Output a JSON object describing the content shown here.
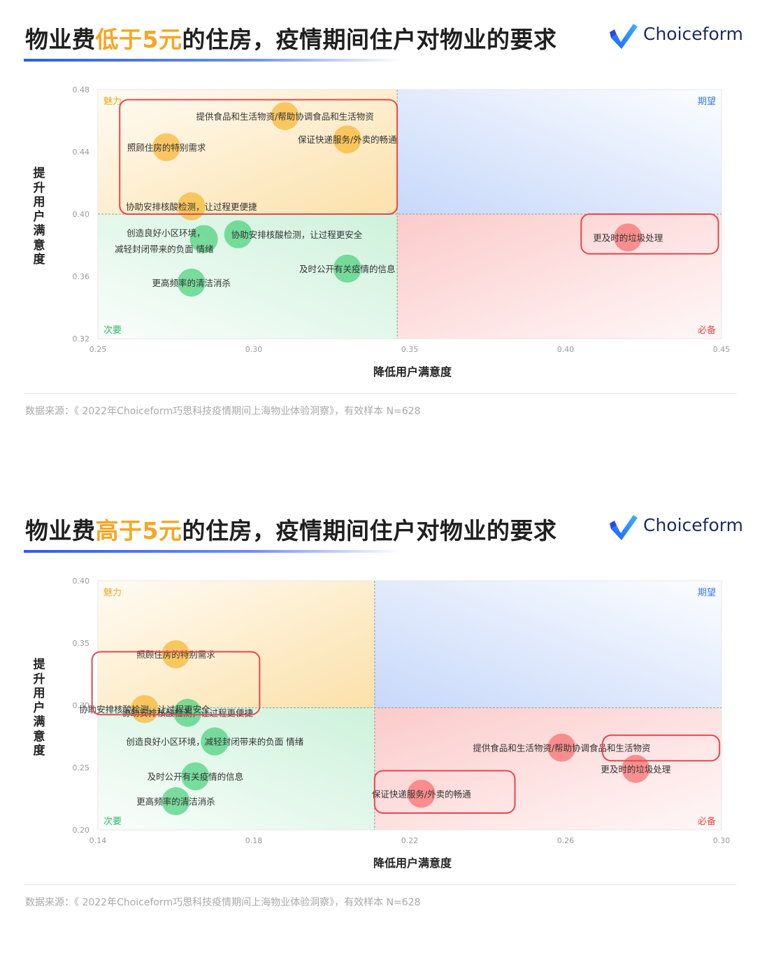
{
  "panels": [
    {
      "title_prefix": "物业费",
      "title_highlight": "低于5元",
      "title_suffix": "的住房，疫情期间住户对物业的要求",
      "logo_text": "Choiceform",
      "source": "数据来源：《 2022年Choiceform巧思科技疫情期间上海物业体验洞察》，有效样本 N=628",
      "chart_data": {
        "type": "scatter",
        "xlabel": "降低用户满意度",
        "ylabel": "提升用户满意度",
        "xlim": [
          0.25,
          0.45
        ],
        "ylim": [
          0.32,
          0.48
        ],
        "x_ticks": [
          "0.25",
          "0.30",
          "0.35",
          "0.40",
          "0.45"
        ],
        "y_ticks": [
          "0.32",
          "0.36",
          "0.40",
          "0.44",
          "0.48"
        ],
        "x_split": 0.346,
        "y_split": 0.4,
        "quadrants": {
          "top_left": "魅力",
          "top_right": "期望",
          "bottom_left": "次要",
          "bottom_right": "必备"
        },
        "points": [
          {
            "label": "提供食品和生活物资/帮助协调食品和生活物资",
            "x": 0.31,
            "y": 0.463,
            "cat": "orange",
            "anchor": "center"
          },
          {
            "label": "照顾住房的特别需求",
            "x": 0.272,
            "y": 0.443,
            "cat": "orange",
            "anchor": "center"
          },
          {
            "label": "保证快递服务/外卖的畅通",
            "x": 0.33,
            "y": 0.448,
            "cat": "orange",
            "anchor": "center"
          },
          {
            "label": "协助安排核酸检测，让过程更便捷",
            "x": 0.28,
            "y": 0.405,
            "cat": "orange",
            "anchor": "center"
          },
          {
            "label": "创造良好小区环境，",
            "x": 0.284,
            "y": 0.384,
            "cat": "green",
            "anchor": "left"
          },
          {
            "label": "减轻封闭带来的负面 情绪",
            "x": 0.284,
            "y": 0.384,
            "cat": "green",
            "anchor": "left2"
          },
          {
            "label": "协助安排核酸检测，让过程更安全",
            "x": 0.295,
            "y": 0.387,
            "cat": "green",
            "anchor": "right"
          },
          {
            "label": "及时公开有关疫情的信息",
            "x": 0.33,
            "y": 0.365,
            "cat": "green",
            "anchor": "center"
          },
          {
            "label": "更高频率的清洁消杀",
            "x": 0.28,
            "y": 0.356,
            "cat": "green",
            "anchor": "center"
          },
          {
            "label": "更及时的垃圾处理",
            "x": 0.42,
            "y": 0.385,
            "cat": "red",
            "anchor": "center"
          }
        ],
        "highlight_boxes": [
          {
            "x0": 0.257,
            "x1": 0.346,
            "y0": 0.4,
            "y1": 0.4735
          },
          {
            "x0": 0.405,
            "x1": 0.449,
            "y0": 0.3745,
            "y1": 0.4
          }
        ]
      }
    },
    {
      "title_prefix": "物业费",
      "title_highlight": "高于5元",
      "title_suffix": "的住房，疫情期间住户对物业的要求",
      "logo_text": "Choiceform",
      "source": "数据来源：《 2022年Choiceform巧思科技疫情期间上海物业体验洞察》，有效样本 N=628",
      "chart_data": {
        "type": "scatter",
        "xlabel": "降低用户满意度",
        "ylabel": "提升用户满意度",
        "xlim": [
          0.14,
          0.3
        ],
        "ylim": [
          0.2,
          0.4
        ],
        "x_ticks": [
          "0.14",
          "0.18",
          "0.22",
          "0.26",
          "0.30"
        ],
        "y_ticks": [
          "0.20",
          "0.25",
          "0.30",
          "0.35",
          "0.40"
        ],
        "x_split": 0.211,
        "y_split": 0.298,
        "quadrants": {
          "top_left": "魅力",
          "top_right": "期望",
          "bottom_left": "次要",
          "bottom_right": "必备"
        },
        "points": [
          {
            "label": "照顾住房的特别需求",
            "x": 0.16,
            "y": 0.341,
            "cat": "orange",
            "anchor": "center"
          },
          {
            "label": "协助安排核酸检测，让过程更安全",
            "x": 0.152,
            "y": 0.297,
            "cat": "orange",
            "anchor": "center"
          },
          {
            "label": "协助安排核酸检测，让过程更便捷",
            "x": 0.163,
            "y": 0.294,
            "cat": "green",
            "anchor": "center"
          },
          {
            "label": "创造良好小区环境，减轻封闭带来的负面 情绪",
            "x": 0.17,
            "y": 0.271,
            "cat": "green",
            "anchor": "center"
          },
          {
            "label": "及时公开有关疫情的信息",
            "x": 0.165,
            "y": 0.243,
            "cat": "green",
            "anchor": "center"
          },
          {
            "label": "更高频率的清洁消杀",
            "x": 0.16,
            "y": 0.223,
            "cat": "green",
            "anchor": "center"
          },
          {
            "label": "提供食品和生活物资/帮助协调食品和生活物资",
            "x": 0.259,
            "y": 0.266,
            "cat": "red",
            "anchor": "center"
          },
          {
            "label": "更及时的垃圾处理",
            "x": 0.278,
            "y": 0.249,
            "cat": "red",
            "anchor": "center"
          },
          {
            "label": "保证快递服务/外卖的畅通",
            "x": 0.223,
            "y": 0.229,
            "cat": "red",
            "anchor": "center"
          }
        ],
        "highlight_boxes": [
          {
            "x0": 0.1385,
            "x1": 0.1815,
            "y0": 0.2925,
            "y1": 0.343
          },
          {
            "x0": 0.2695,
            "x1": 0.2995,
            "y0": 0.2555,
            "y1": 0.276
          },
          {
            "x0": 0.211,
            "x1": 0.247,
            "y0": 0.2135,
            "y1": 0.2475
          }
        ]
      }
    }
  ],
  "colors": {
    "orange": "#f7b733",
    "green": "#4cd07d",
    "red": "#f76d6d",
    "blue": "#5b8def",
    "highlight_box": "#e5484d",
    "quad_top_left": "#f5a623",
    "quad_top_right": "#3b7bf0",
    "quad_bottom_left": "#2fb964",
    "quad_bottom_right": "#f04747"
  }
}
